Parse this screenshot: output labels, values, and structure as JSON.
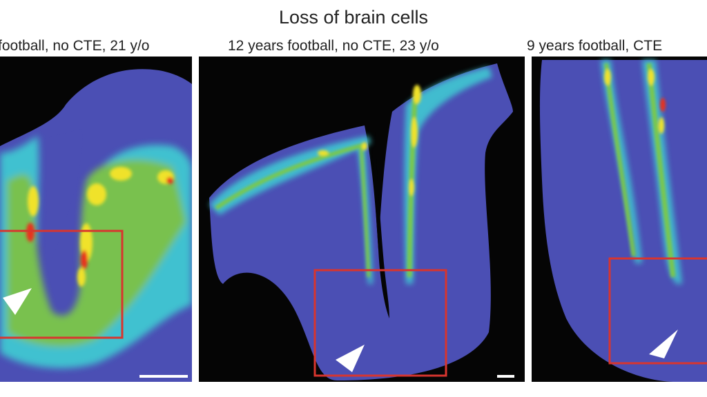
{
  "figure": {
    "title": "Loss of brain cells",
    "panels": [
      {
        "caption": "football, no CTE, 21 y/o"
      },
      {
        "caption": "12 years football, no CTE, 23 y/o"
      },
      {
        "caption": "9 years football, CTE"
      }
    ]
  },
  "colors": {
    "background": "#050505",
    "tissue": "#4b4fb4",
    "heat_low": "#41c8d2",
    "heat_mid": "#7cc84a",
    "heat_high": "#f0e22c",
    "heat_peak": "#e8321e",
    "highlight_box": "#d8352e",
    "arrowhead": "#ffffff",
    "scale_bar": "#ffffff"
  }
}
